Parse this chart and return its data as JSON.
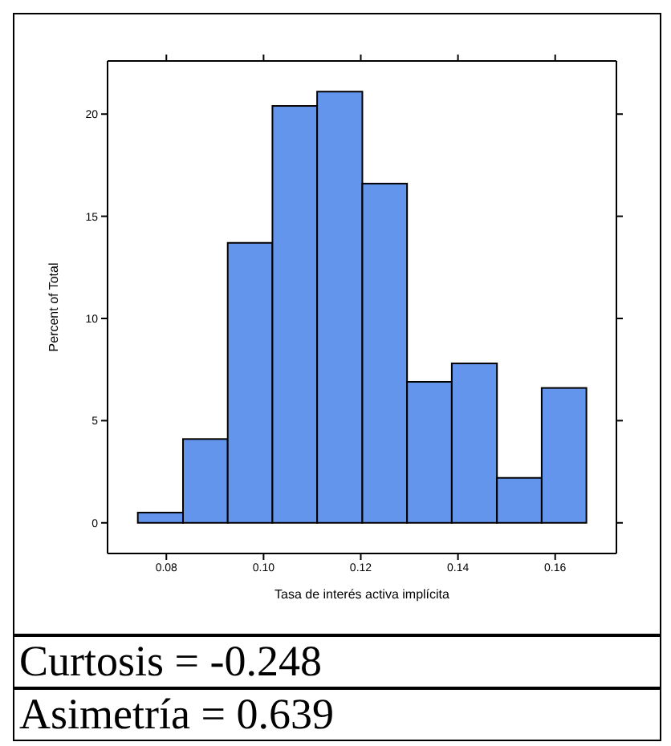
{
  "chart_data": {
    "type": "histogram",
    "xlabel": "Tasa de interés activa implícita",
    "ylabel": "Percent of Total",
    "bins": [
      0.0741,
      0.0834,
      0.0926,
      0.1018,
      0.111,
      0.1203,
      0.1295,
      0.1387,
      0.148,
      0.1572,
      0.1664
    ],
    "values": [
      0.5,
      4.1,
      13.7,
      20.4,
      21.1,
      16.6,
      6.9,
      7.8,
      2.2,
      6.6
    ],
    "color": "#6495ed",
    "xlim": [
      0.0679,
      0.1726
    ],
    "xticks": [
      {
        "value": 0.08,
        "label": "0.08"
      },
      {
        "value": 0.1,
        "label": "0.10"
      },
      {
        "value": 0.12,
        "label": "0.12"
      },
      {
        "value": 0.14,
        "label": "0.14"
      },
      {
        "value": 0.16,
        "label": "0.16"
      }
    ],
    "ylim": [
      -1.5,
      22.6
    ],
    "yticks": [
      0,
      5,
      10,
      15,
      20
    ],
    "annotations": [
      "Curtosis = -0.248",
      "Asimetría = 0.639"
    ]
  }
}
